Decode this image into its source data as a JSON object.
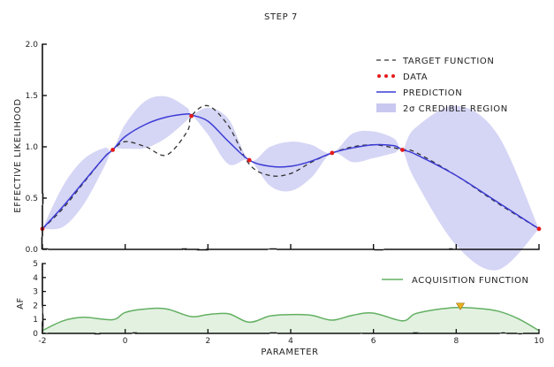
{
  "chart_data": [
    {
      "type": "line",
      "title": "STEP 7",
      "xlabel": "",
      "ylabel": "EFFECTIVE LIKELIHOOD",
      "xlim": [
        -2,
        10
      ],
      "ylim": [
        0,
        2
      ],
      "yticks": [
        "0.0",
        "0.5",
        "1.0",
        "1.5",
        "2.0"
      ],
      "legend_position": "top-right",
      "legend": [
        "TARGET FUNCTION",
        "DATA",
        "PREDICTION",
        "2σ CREDIBLE REGION"
      ],
      "series": [
        {
          "name": "TARGET FUNCTION",
          "style": "dashed",
          "color": "#333333",
          "x": [
            -2,
            -1.5,
            -1,
            -0.5,
            -0.3,
            0,
            0.5,
            1,
            1.5,
            1.6,
            2,
            2.5,
            3,
            3.5,
            4,
            4.5,
            5,
            5.5,
            6,
            6.5,
            6.7,
            7,
            8,
            9,
            10
          ],
          "y": [
            0.2,
            0.4,
            0.65,
            0.9,
            0.97,
            1.05,
            1.0,
            0.92,
            1.15,
            1.3,
            1.4,
            1.2,
            0.83,
            0.72,
            0.74,
            0.85,
            0.94,
            1.0,
            1.02,
            0.99,
            0.97,
            0.95,
            0.72,
            0.45,
            0.2
          ]
        },
        {
          "name": "DATA",
          "style": "markers",
          "color": "#e41a1c",
          "x": [
            -2,
            -0.3,
            1.6,
            3,
            5,
            6.7,
            10
          ],
          "y": [
            0.2,
            0.97,
            1.3,
            0.87,
            0.94,
            0.97,
            0.2
          ]
        },
        {
          "name": "PREDICTION",
          "style": "solid",
          "color": "#3b3bd6",
          "x": [
            -2,
            -1.5,
            -1,
            -0.5,
            -0.3,
            0,
            0.5,
            1,
            1.5,
            1.6,
            2,
            2.5,
            3,
            3.5,
            4,
            4.5,
            5,
            5.5,
            6,
            6.5,
            6.7,
            7,
            8,
            9,
            10
          ],
          "y": [
            0.2,
            0.42,
            0.66,
            0.9,
            0.97,
            1.1,
            1.22,
            1.29,
            1.32,
            1.31,
            1.25,
            1.05,
            0.87,
            0.81,
            0.81,
            0.86,
            0.94,
            0.99,
            1.02,
            1.01,
            0.97,
            0.93,
            0.72,
            0.46,
            0.2
          ]
        },
        {
          "name": "2σ CREDIBLE REGION",
          "style": "band",
          "color": "#9a9ae6",
          "x": [
            -2,
            -1.5,
            -1,
            -0.5,
            -0.3,
            0,
            0.5,
            1,
            1.5,
            1.6,
            2,
            2.5,
            3,
            3.5,
            4,
            4.5,
            5,
            5.5,
            6,
            6.5,
            6.7,
            7,
            8,
            9,
            10
          ],
          "upper": [
            0.2,
            0.62,
            0.88,
            0.99,
            0.97,
            1.22,
            1.45,
            1.49,
            1.38,
            1.31,
            1.38,
            1.27,
            0.87,
            1.0,
            1.05,
            1.02,
            0.94,
            1.13,
            1.15,
            1.08,
            0.97,
            1.18,
            1.4,
            1.12,
            0.2
          ]
        }
      ]
    },
    {
      "type": "area",
      "title": "",
      "xlabel": "PARAMETER",
      "ylabel": "AF",
      "xlim": [
        -2,
        10
      ],
      "ylim": [
        0,
        5
      ],
      "xticks": [
        "-2",
        "0",
        "2",
        "4",
        "6",
        "8",
        "10"
      ],
      "yticks": [
        "0",
        "1",
        "2",
        "3",
        "4",
        "5"
      ],
      "legend_position": "top-right",
      "legend": [
        "ACQUISITION FUNCTION"
      ],
      "series": [
        {
          "name": "ACQUISITION FUNCTION",
          "color": "#62b062",
          "fill": "#e3f1e1",
          "x": [
            -2,
            -1.5,
            -1,
            -0.3,
            0,
            0.5,
            1,
            1.6,
            2,
            2.5,
            3,
            3.5,
            4,
            4.5,
            5,
            5.5,
            6,
            6.7,
            7,
            7.5,
            8,
            8.5,
            9,
            9.5,
            10
          ],
          "y": [
            0.2,
            0.9,
            1.15,
            0.98,
            1.5,
            1.75,
            1.75,
            1.2,
            1.35,
            1.4,
            0.8,
            1.25,
            1.35,
            1.3,
            0.95,
            1.3,
            1.45,
            0.9,
            1.4,
            1.7,
            1.85,
            1.8,
            1.6,
            1.05,
            0.2
          ]
        }
      ],
      "marker": {
        "name": "next-sample",
        "x": 8.1,
        "y": 1.85,
        "color": "#e8b020"
      }
    }
  ]
}
